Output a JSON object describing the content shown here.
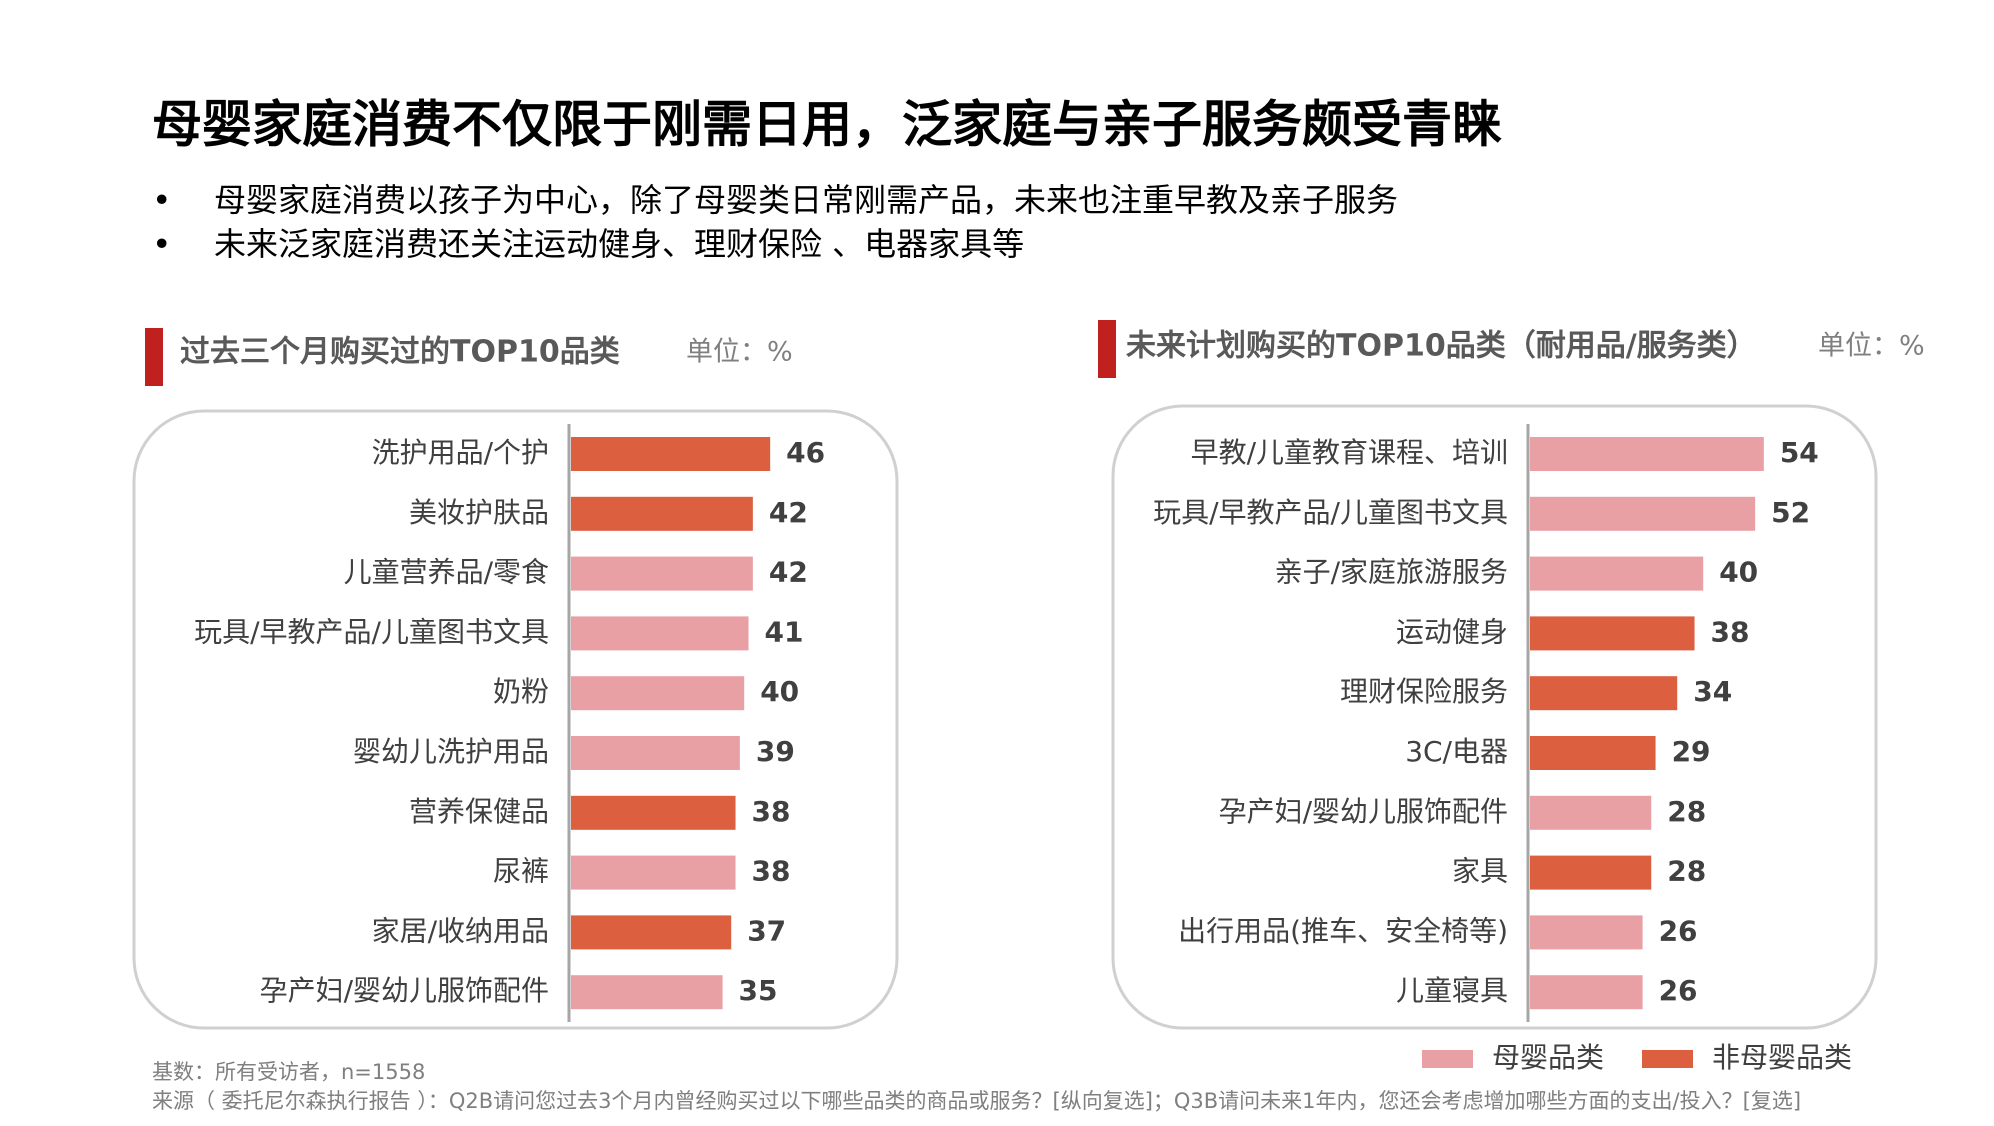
{
  "header": {
    "title": "母婴家庭消费不仅限于刚需日用，泛家庭与亲子服务颇受青睐",
    "bullets": [
      "母婴家庭消费以孩子为中心，除了母婴类日常刚需产品，未来也注重早教及亲子服务",
      "未来泛家庭消费还关注运动健身、理财保险 、电器家具等"
    ]
  },
  "chart_data": [
    {
      "type": "bar",
      "orientation": "horizontal",
      "title": "过去三个月购买过的TOP10品类",
      "unit": "单位：%",
      "categories": [
        "洗护用品/个护",
        "美妆护肤品",
        "儿童营养品/零食",
        "玩具/早教产品/儿童图书文具",
        "奶粉",
        "婴幼儿洗护用品",
        "营养保健品",
        "尿裤",
        "家居/收纳用品",
        "孕产妇/婴幼儿服饰配件"
      ],
      "values": [
        46,
        42,
        42,
        41,
        40,
        39,
        38,
        38,
        37,
        35
      ],
      "bar_colors": [
        "#dc5f40",
        "#dc5f40",
        "#e8a0a4",
        "#e8a0a4",
        "#e8a0a4",
        "#e8a0a4",
        "#dc5f40",
        "#e8a0a4",
        "#dc5f40",
        "#e8a0a4"
      ]
    },
    {
      "type": "bar",
      "orientation": "horizontal",
      "title": "未来计划购买的TOP10品类（耐用品/服务类）",
      "unit": "单位：%",
      "categories": [
        "早教/儿童教育课程、培训",
        "玩具/早教产品/儿童图书文具",
        "亲子/家庭旅游服务",
        "运动健身",
        "理财保险服务",
        "3C/电器",
        "孕产妇/婴幼儿服饰配件",
        "家具",
        "出行用品(推车、安全椅等)",
        "儿童寝具"
      ],
      "values": [
        54,
        52,
        40,
        38,
        34,
        29,
        28,
        28,
        26,
        26
      ],
      "bar_colors": [
        "#e8a0a4",
        "#e8a0a4",
        "#e8a0a4",
        "#dc5f40",
        "#dc5f40",
        "#dc5f40",
        "#e8a0a4",
        "#dc5f40",
        "#e8a0a4",
        "#e8a0a4"
      ]
    }
  ],
  "legend": [
    {
      "name": "母婴品类",
      "color": "#e8a0a4"
    },
    {
      "name": "非母婴品类",
      "color": "#dc5f40"
    }
  ],
  "footnotes": [
    "基数：所有受访者，n=1558",
    "来源（ 委托尼尔森执行报告 ）：Q2B请问您过去3个月内曾经购买过以下哪些品类的商品或服务？[纵向复选]；Q3B请问未来1年内，您还会考虑增加哪些方面的支出/投入？[复选]"
  ]
}
